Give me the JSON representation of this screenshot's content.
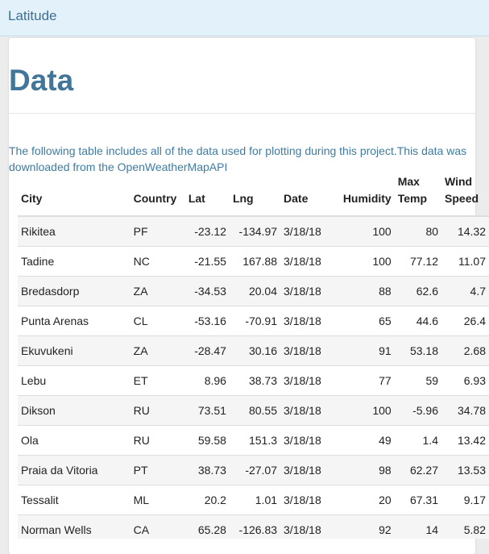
{
  "navbar": {
    "brand": "Latitude"
  },
  "page": {
    "title": "Data",
    "intro": "The following table includes all of the data used for plotting during this project.This data was downloaded from the OpenWeatherMapAPI"
  },
  "table": {
    "headers": {
      "city": "City",
      "country": "Country",
      "lat": "Lat",
      "lng": "Lng",
      "date": "Date",
      "humidity": "Humidity",
      "max_temp_1": "Max",
      "max_temp_2": "Temp",
      "wind_speed_1": "Wind",
      "wind_speed_2": "Speed"
    },
    "rows": [
      {
        "city": "Rikitea",
        "country": "PF",
        "lat": "-23.12",
        "lng": "-134.97",
        "date": "3/18/18",
        "humidity": "100",
        "max_temp": "80",
        "wind_speed": "14.32"
      },
      {
        "city": "Tadine",
        "country": "NC",
        "lat": "-21.55",
        "lng": "167.88",
        "date": "3/18/18",
        "humidity": "100",
        "max_temp": "77.12",
        "wind_speed": "11.07"
      },
      {
        "city": "Bredasdorp",
        "country": "ZA",
        "lat": "-34.53",
        "lng": "20.04",
        "date": "3/18/18",
        "humidity": "88",
        "max_temp": "62.6",
        "wind_speed": "4.7"
      },
      {
        "city": "Punta Arenas",
        "country": "CL",
        "lat": "-53.16",
        "lng": "-70.91",
        "date": "3/18/18",
        "humidity": "65",
        "max_temp": "44.6",
        "wind_speed": "26.4"
      },
      {
        "city": "Ekuvukeni",
        "country": "ZA",
        "lat": "-28.47",
        "lng": "30.16",
        "date": "3/18/18",
        "humidity": "91",
        "max_temp": "53.18",
        "wind_speed": "2.68"
      },
      {
        "city": "Lebu",
        "country": "ET",
        "lat": "8.96",
        "lng": "38.73",
        "date": "3/18/18",
        "humidity": "77",
        "max_temp": "59",
        "wind_speed": "6.93"
      },
      {
        "city": "Dikson",
        "country": "RU",
        "lat": "73.51",
        "lng": "80.55",
        "date": "3/18/18",
        "humidity": "100",
        "max_temp": "-5.96",
        "wind_speed": "34.78"
      },
      {
        "city": "Ola",
        "country": "RU",
        "lat": "59.58",
        "lng": "151.3",
        "date": "3/18/18",
        "humidity": "49",
        "max_temp": "1.4",
        "wind_speed": "13.42"
      },
      {
        "city": "Praia da Vitoria",
        "country": "PT",
        "lat": "38.73",
        "lng": "-27.07",
        "date": "3/18/18",
        "humidity": "98",
        "max_temp": "62.27",
        "wind_speed": "13.53"
      },
      {
        "city": "Tessalit",
        "country": "ML",
        "lat": "20.2",
        "lng": "1.01",
        "date": "3/18/18",
        "humidity": "20",
        "max_temp": "67.31",
        "wind_speed": "9.17"
      },
      {
        "city": "Norman Wells",
        "country": "CA",
        "lat": "65.28",
        "lng": "-126.83",
        "date": "3/18/18",
        "humidity": "92",
        "max_temp": "14",
        "wind_speed": "5.82"
      }
    ]
  }
}
